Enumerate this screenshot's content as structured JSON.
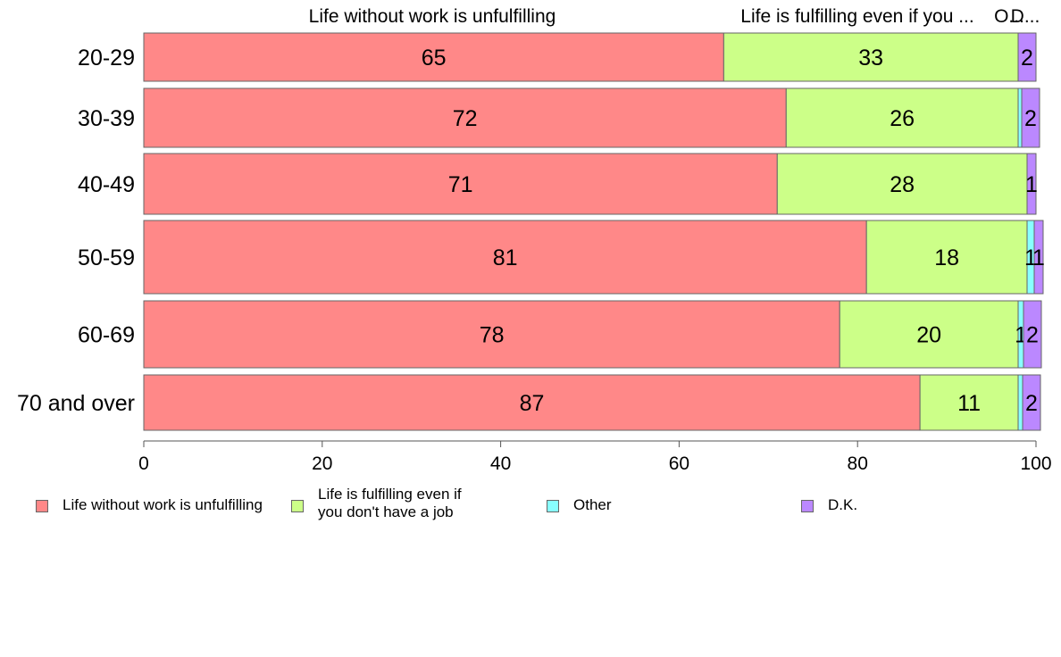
{
  "chart_data": {
    "type": "bar",
    "orientation": "horizontal",
    "stacked": true,
    "categories": [
      "20-29",
      "30-39",
      "40-49",
      "50-59",
      "60-69",
      "70 and over"
    ],
    "series": [
      {
        "name": "Life without work is unfulfilling",
        "color": "#ff8888",
        "values": [
          65,
          72,
          71,
          81,
          78,
          87
        ]
      },
      {
        "name": "Life is fulfilling even if you don't have a job",
        "color": "#ccff88",
        "values": [
          33,
          26,
          28,
          18,
          20,
          11
        ]
      },
      {
        "name": "Other",
        "color": "#88ffff",
        "values": [
          0,
          0.4,
          0,
          0.8,
          0.6,
          0.5
        ]
      },
      {
        "name": "D.K.",
        "color": "#bb88ff",
        "values": [
          2,
          2,
          1,
          1,
          2,
          2
        ]
      }
    ],
    "bar_labels": [
      [
        "65",
        "33",
        "",
        "2"
      ],
      [
        "72",
        "26",
        "",
        "2"
      ],
      [
        "71",
        "28",
        "",
        "1"
      ],
      [
        "81",
        "18",
        "1",
        "1"
      ],
      [
        "78",
        "20",
        "1",
        "2"
      ],
      [
        "87",
        "11",
        "",
        "2"
      ]
    ],
    "top_labels": [
      "Life without work is unfulfilling",
      "Life is fulfilling even if you ...",
      "O...",
      "D..."
    ],
    "xlim": [
      0,
      100
    ],
    "xticks": [
      "0",
      "20",
      "40",
      "60",
      "80",
      "100"
    ],
    "legend_position": "bottom",
    "legend_labels": [
      "Life without work is unfulfilling",
      "Life is fulfilling even if\nyou don't have a job",
      "Other",
      "D.K."
    ],
    "grid": false
  }
}
